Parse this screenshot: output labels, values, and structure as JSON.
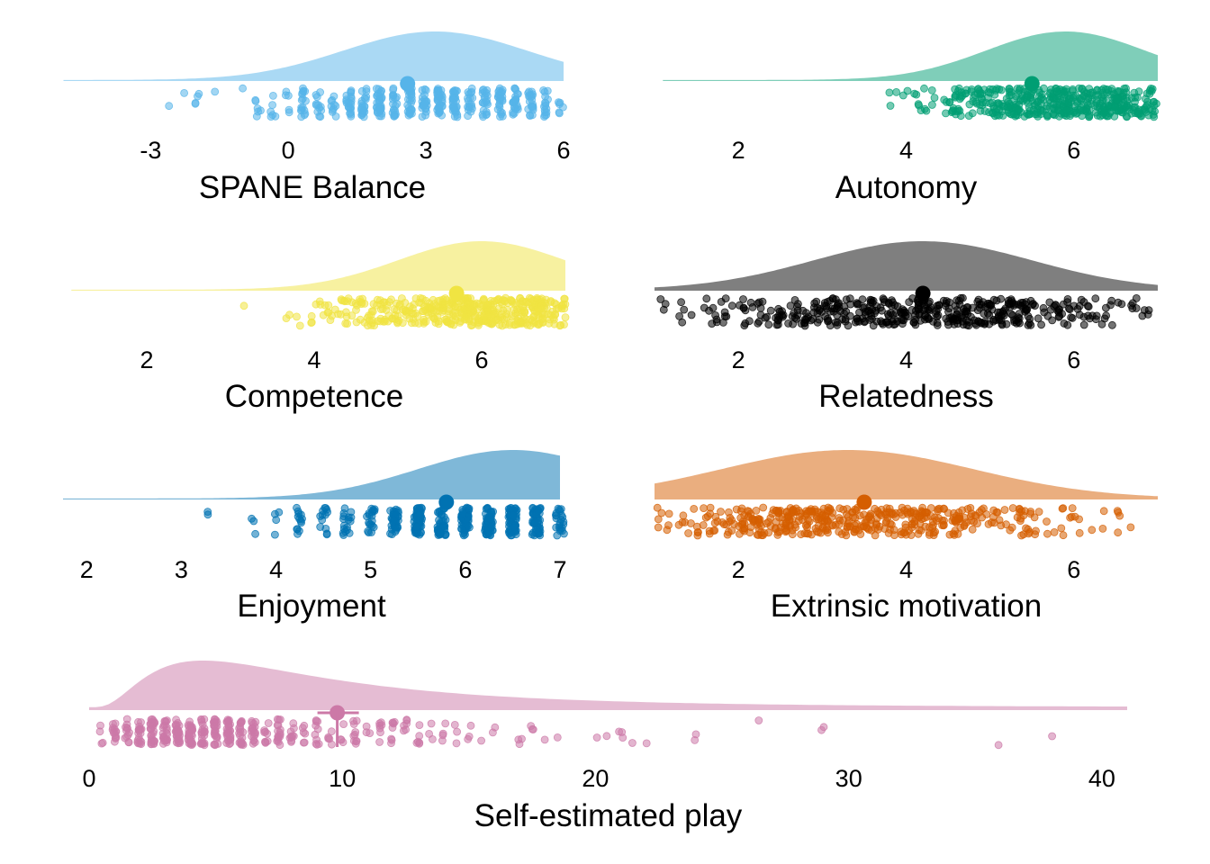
{
  "chart_data": [
    {
      "type": "raincloud",
      "xlabel": "SPANE Balance",
      "color": "#56B4E9",
      "xlim": [
        -4.95,
        6
      ],
      "ticks": [
        -3,
        0,
        3,
        6
      ],
      "tick_labels": [
        "-3",
        "0",
        "3",
        "6"
      ],
      "mean": 2.6,
      "density": {
        "kind": "normal",
        "mu": 3.2,
        "sd": 2.0,
        "lower": -4.9,
        "upper": 6
      },
      "points": {
        "n": 420,
        "min": -4.9,
        "max": 6,
        "mode": 3.2,
        "sd": 2.0,
        "discrete_step": 0.33
      }
    },
    {
      "type": "raincloud",
      "xlabel": "Autonomy",
      "color": "#009E73",
      "xlim": [
        1,
        7
      ],
      "ticks": [
        2,
        4,
        6
      ],
      "tick_labels": [
        "2",
        "4",
        "6"
      ],
      "mean": 5.5,
      "density": {
        "kind": "normal",
        "mu": 5.9,
        "sd": 0.95,
        "lower": 1.1,
        "upper": 7
      },
      "points": {
        "n": 460,
        "min": 1.1,
        "max": 7,
        "mode": 6.0,
        "sd": 0.95,
        "discrete_step": 0
      }
    },
    {
      "type": "raincloud",
      "xlabel": "Competence",
      "color": "#F0E442",
      "xlim": [
        1,
        7
      ],
      "ticks": [
        2,
        4,
        6
      ],
      "tick_labels": [
        "2",
        "4",
        "6"
      ],
      "mean": 5.7,
      "density": {
        "kind": "normal",
        "mu": 6.0,
        "sd": 1.0,
        "lower": 1.1,
        "upper": 7
      },
      "points": {
        "n": 460,
        "min": 1.1,
        "max": 7,
        "mode": 6.0,
        "sd": 1.0,
        "discrete_step": 0
      }
    },
    {
      "type": "raincloud",
      "xlabel": "Relatedness",
      "color": "#000000",
      "xlim": [
        1,
        7
      ],
      "ticks": [
        2,
        4,
        6
      ],
      "tick_labels": [
        "2",
        "4",
        "6"
      ],
      "mean": 4.2,
      "density": {
        "kind": "normal",
        "mu": 4.2,
        "sd": 1.3,
        "lower": 1.0,
        "upper": 7
      },
      "points": {
        "n": 460,
        "min": 1.0,
        "max": 7,
        "mode": 4.2,
        "sd": 1.4,
        "discrete_step": 0
      }
    },
    {
      "type": "raincloud",
      "xlabel": "Enjoyment",
      "color": "#0072B2",
      "xlim": [
        1.75,
        7
      ],
      "ticks": [
        2,
        3,
        4,
        5,
        6,
        7
      ],
      "tick_labels": [
        "2",
        "3",
        "4",
        "5",
        "6",
        "7"
      ],
      "mean": 5.8,
      "density": {
        "kind": "normal",
        "mu": 6.5,
        "sd": 1.0,
        "lower": 1.75,
        "upper": 7
      },
      "points": {
        "n": 460,
        "min": 1.75,
        "max": 7,
        "mode": 6.3,
        "sd": 1.1,
        "discrete_step": 0.25
      }
    },
    {
      "type": "raincloud",
      "xlabel": "Extrinsic motivation",
      "color": "#D55E00",
      "xlim": [
        1,
        7
      ],
      "ticks": [
        2,
        4,
        6
      ],
      "tick_labels": [
        "2",
        "4",
        "6"
      ],
      "mean": 3.5,
      "density": {
        "kind": "normal",
        "mu": 3.3,
        "sd": 1.5,
        "lower": 1.0,
        "upper": 7
      },
      "points": {
        "n": 460,
        "min": 1.0,
        "max": 7,
        "mode": 3.3,
        "sd": 1.4,
        "discrete_step": 0
      }
    },
    {
      "type": "raincloud",
      "xlabel": "Self-estimated play",
      "color": "#CC79A7",
      "xlim": [
        0,
        41
      ],
      "ticks": [
        0,
        10,
        20,
        30,
        40
      ],
      "tick_labels": [
        "0",
        "10",
        "20",
        "30",
        "40"
      ],
      "mean": 9.8,
      "density": {
        "kind": "lognormal",
        "peak": 4.5,
        "sd": 0.75,
        "lower": 0,
        "upper": 41,
        "tail": 0.06
      },
      "points": {
        "n": 420,
        "min": 0,
        "max": 41,
        "mode": 5.0,
        "sd": 0.75,
        "discrete_step": 0.5
      }
    }
  ]
}
